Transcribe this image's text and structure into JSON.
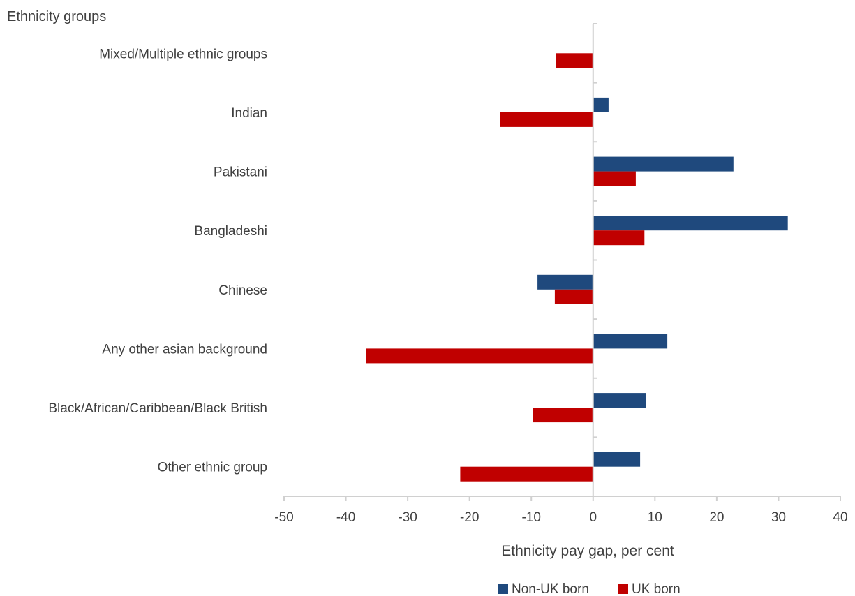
{
  "chart_data": {
    "type": "bar",
    "orientation": "horizontal",
    "title": "",
    "ylabel": "Ethnicity groups",
    "xlabel": "Ethnicity pay gap, per cent",
    "categories": [
      "Mixed/Multiple ethnic groups",
      "Indian",
      "Pakistani",
      "Bangladeshi",
      "Chinese",
      "Any other asian background",
      "Black/African/Caribbean/Black British",
      "Other ethnic group"
    ],
    "series": [
      {
        "name": "Non-UK born",
        "color": "#1f497d",
        "values": [
          null,
          2.5,
          22.7,
          31.5,
          -9,
          12,
          8.6,
          7.6
        ]
      },
      {
        "name": "UK born",
        "color": "#c00000",
        "values": [
          -6,
          -15,
          6.9,
          8.3,
          -6.2,
          -36.7,
          -9.7,
          -21.5
        ]
      }
    ],
    "xlim": [
      -50,
      40
    ],
    "xticks": [
      "-50",
      "-40",
      "-30",
      "-20",
      "-10",
      "0",
      "10",
      "20",
      "30",
      "40"
    ],
    "grid": false,
    "legend_position": "bottom"
  }
}
